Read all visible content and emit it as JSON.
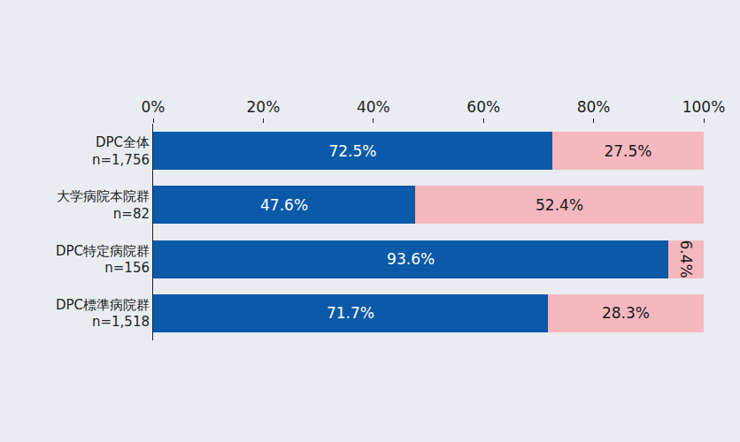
{
  "chart_data": {
    "type": "bar",
    "orientation": "horizontal",
    "stacked": true,
    "data_labels": true,
    "grid": false,
    "categories": [
      "DPC全体\nn=1,756",
      "大学病院本院群\nn=82",
      "DPC特定病院群\nn=156",
      "DPC標準病院群\nn=1,518"
    ],
    "series": [
      {
        "color": "#0a5aa8",
        "values": [
          72.5,
          47.6,
          93.6,
          71.7
        ],
        "value_labels": [
          "72.5%",
          "47.6%",
          "93.6%",
          "71.7%"
        ]
      },
      {
        "color": "#f5b8be",
        "values": [
          27.5,
          52.4,
          6.4,
          28.3
        ],
        "value_labels": [
          "27.5%",
          "52.4%",
          "6.4%",
          "28.3%"
        ]
      }
    ],
    "xlim": [
      0,
      100
    ],
    "xticks": [
      {
        "value": 0,
        "label": "0%"
      },
      {
        "value": 20,
        "label": "20%"
      },
      {
        "value": 40,
        "label": "40%"
      },
      {
        "value": 60,
        "label": "60%"
      },
      {
        "value": 80,
        "label": "80%"
      },
      {
        "value": 100,
        "label": "100%"
      }
    ]
  }
}
